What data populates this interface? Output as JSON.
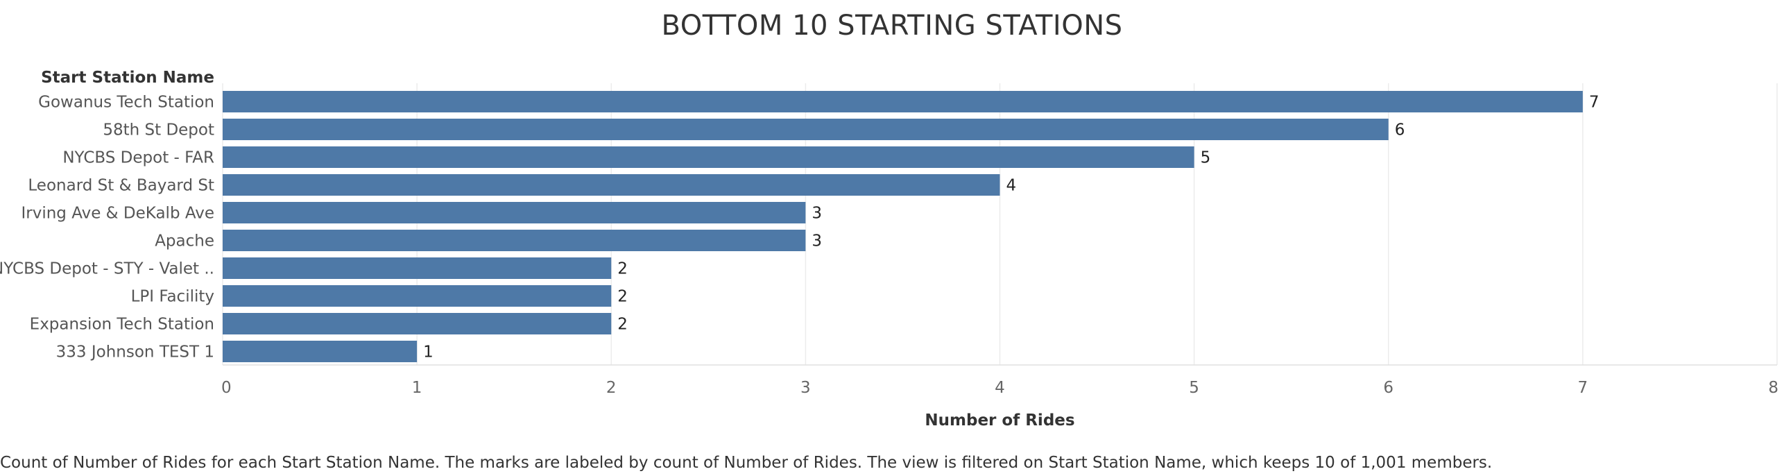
{
  "chart_data": {
    "type": "bar",
    "orientation": "horizontal",
    "title": "BOTTOM 10 STARTING STATIONS",
    "category_header": "Start Station Name",
    "xlabel": "Number of Rides",
    "categories": [
      "Gowanus Tech Station",
      "58th St Depot",
      "NYCBS Depot - FAR",
      "Leonard St & Bayard St",
      "Irving Ave & DeKalb Ave",
      "Apache",
      "NYCBS Depot - STY - Valet ..",
      "LPI Facility",
      "Expansion Tech Station",
      "333 Johnson TEST 1"
    ],
    "values": [
      7,
      6,
      5,
      4,
      3,
      3,
      2,
      2,
      2,
      1
    ],
    "xlim": [
      0,
      8
    ],
    "xticks": [
      0,
      1,
      2,
      3,
      4,
      5,
      6,
      7,
      8
    ],
    "grid": "vertical",
    "data_labels": true,
    "bar_color": "#4e79a7"
  },
  "caption": "Count of Number of Rides for each Start Station Name.  The marks are labeled by count of Number of Rides. The view is filtered on Start Station Name, which keeps 10 of 1,001 members."
}
